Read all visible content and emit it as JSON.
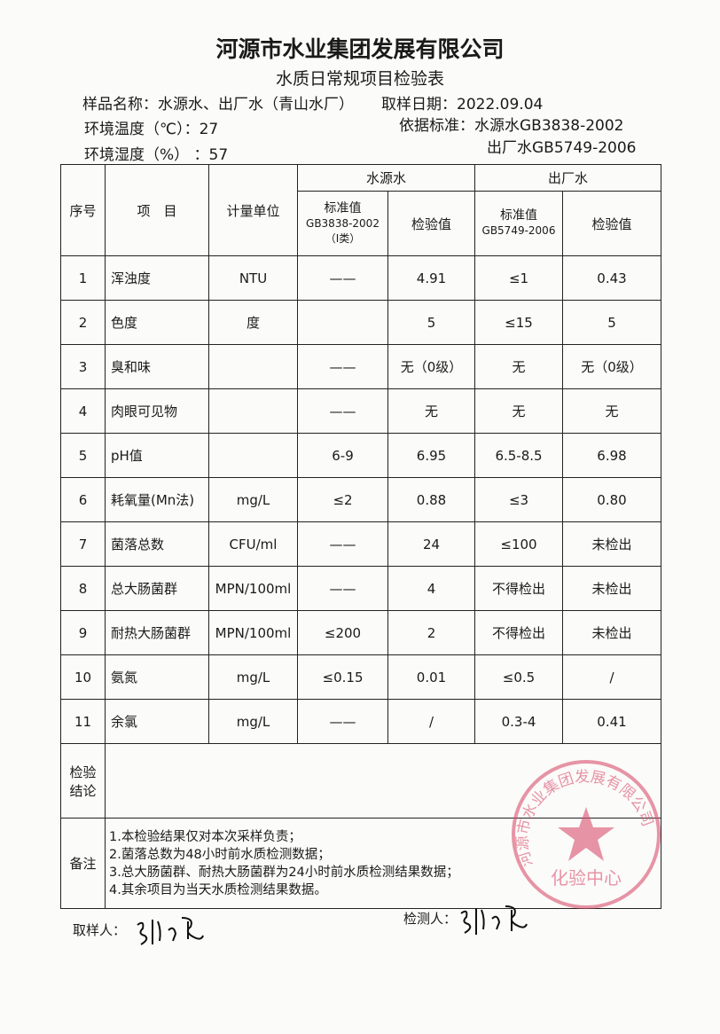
{
  "title": "河源市水业集团发展有限公司",
  "subtitle": "水质日常规项目检验表",
  "meta": {
    "sample_name": "样品名称：水源水、出厂水（青山水厂）",
    "sample_date": "取样日期：2022.09.04",
    "temperature": "环境温度（℃）：27",
    "standard": "依据标准：水源水GB3838-2002",
    "standard2": "出厂水GB5749-2006",
    "humidity": "环境湿度（%）  ：57"
  },
  "table": {
    "headers": {
      "no": "序号",
      "item": "项　目",
      "unit": "计量单位",
      "source": "水源水",
      "outlet": "出厂水",
      "std_source_1": "标准值",
      "std_source_2": "GB3838-2002",
      "std_source_3": "（Ⅰ类）",
      "test": "检验值",
      "std_outlet_1": "标准值",
      "std_outlet_2": "GB5749-2006"
    },
    "rows": [
      {
        "no": "1",
        "item": "浑浊度",
        "unit": "NTU",
        "s_std": "——",
        "s_val": "4.91",
        "o_std": "≤1",
        "o_val": "0.43"
      },
      {
        "no": "2",
        "item": "色度",
        "unit": "度",
        "s_std": "",
        "s_val": "5",
        "o_std": "≤15",
        "o_val": "5"
      },
      {
        "no": "3",
        "item": "臭和味",
        "unit": "",
        "s_std": "——",
        "s_val": "无（0级）",
        "o_std": "无",
        "o_val": "无（0级）"
      },
      {
        "no": "4",
        "item": "肉眼可见物",
        "unit": "",
        "s_std": "——",
        "s_val": "无",
        "o_std": "无",
        "o_val": "无"
      },
      {
        "no": "5",
        "item": "pH值",
        "unit": "",
        "s_std": "6-9",
        "s_val": "6.95",
        "o_std": "6.5-8.5",
        "o_val": "6.98"
      },
      {
        "no": "6",
        "item": "耗氧量(Mn法)",
        "unit": "mg/L",
        "s_std": "≤2",
        "s_val": "0.88",
        "o_std": "≤3",
        "o_val": "0.80"
      },
      {
        "no": "7",
        "item": "菌落总数",
        "unit": "CFU/ml",
        "s_std": "——",
        "s_val": "24",
        "o_std": "≤100",
        "o_val": "未检出"
      },
      {
        "no": "8",
        "item": "总大肠菌群",
        "unit": "MPN/100ml",
        "s_std": "——",
        "s_val": "4",
        "o_std": "不得检出",
        "o_val": "未检出"
      },
      {
        "no": "9",
        "item": "耐热大肠菌群",
        "unit": "MPN/100ml",
        "s_std": "≤200",
        "s_val": "2",
        "o_std": "不得检出",
        "o_val": "未检出"
      },
      {
        "no": "10",
        "item": "氨氮",
        "unit": "mg/L",
        "s_std": "≤0.15",
        "s_val": "0.01",
        "o_std": "≤0.5",
        "o_val": "/"
      },
      {
        "no": "11",
        "item": "余氯",
        "unit": "mg/L",
        "s_std": "——",
        "s_val": "/",
        "o_std": "0.3-4",
        "o_val": "0.41"
      }
    ],
    "conclusion_label": "检验结论",
    "notes_label": "备注",
    "notes": [
      "1.本检验结果仅对本次采样负责；",
      "2.菌落总数为48小时前水质检测数据；",
      "3.总大肠菌群、耐热大肠菌群为24小时前水质检测结果数据；",
      "4.其余项目为当天水质检测结果数据。"
    ]
  },
  "sampler_label": "取样人：",
  "tester_label": "检测人：",
  "stamp": {
    "text": "河源市水业集团发展有限公司",
    "center": "化验中心",
    "color": "#d9506e"
  }
}
